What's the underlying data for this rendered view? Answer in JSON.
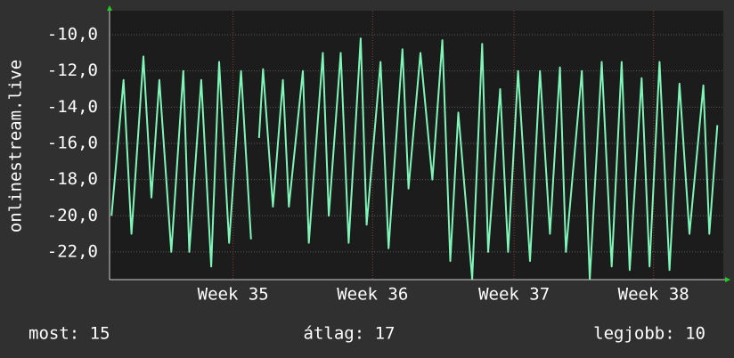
{
  "chart_data": {
    "type": "line",
    "y_label": "onlinestream.live",
    "x": [
      0.1,
      0.7,
      1.1,
      1.7,
      2.1,
      2.5,
      3.1,
      3.7,
      4.0,
      4.6,
      5.1,
      5.5,
      6.0,
      6.6,
      7.1,
      7.3,
      7.5,
      7.7,
      8.2,
      8.7,
      9.0,
      9.7,
      10.0,
      10.7,
      11.0,
      11.6,
      12.0,
      12.6,
      12.9,
      13.6,
      14.0,
      14.7,
      15.0,
      15.6,
      16.2,
      16.7,
      17.1,
      17.5,
      18.2,
      18.7,
      19.0,
      19.6,
      20.0,
      20.5,
      21.1,
      21.6,
      22.1,
      22.6,
      22.9,
      23.7,
      24.1,
      24.7,
      25.2,
      25.7,
      26.1,
      26.7,
      27.1,
      27.6,
      28.1,
      28.6,
      29.1,
      29.8,
      30.1,
      30.5
    ],
    "series": [
      {
        "name": "onlinestream.live",
        "color": "#7ff5b8",
        "values": [
          -20,
          -12.5,
          -21,
          -11.2,
          -19,
          -12.5,
          -22,
          -12,
          -22,
          -12.5,
          -22.8,
          -11.5,
          -21.5,
          -12,
          -21.3,
          null,
          -15.7,
          -11.9,
          -19.5,
          -12.5,
          -19.5,
          -12,
          -21.5,
          -11,
          -20,
          -11,
          -21.5,
          -10.2,
          -20.5,
          -11.5,
          -21.8,
          -10.8,
          -18.5,
          -11,
          -18,
          -10.3,
          -22.5,
          -14.3,
          -23.5,
          -10.5,
          -22,
          -13,
          -22,
          -12,
          -22.5,
          -12,
          -21,
          -11.8,
          -22,
          -12,
          -23.5,
          -11.5,
          -22.8,
          -11.5,
          -23,
          -12.4,
          -22.8,
          -11.5,
          -23,
          -12.7,
          -21,
          -12.8,
          -21,
          -15
        ]
      }
    ],
    "xlim": [
      0,
      30.8
    ],
    "xticks": [
      {
        "value": 6.2,
        "label": "Week 35"
      },
      {
        "value": 13.2,
        "label": "Week 36"
      },
      {
        "value": 20.3,
        "label": "Week 37"
      },
      {
        "value": 27.3,
        "label": "Week 38"
      }
    ],
    "ylim": [
      -23.53,
      -8.67
    ],
    "yticks": [
      {
        "value": -22,
        "label": "-22,0"
      },
      {
        "value": -20,
        "label": "-20,0"
      },
      {
        "value": -18,
        "label": "-18,0"
      },
      {
        "value": -16,
        "label": "-16,0"
      },
      {
        "value": -14,
        "label": "-14,0"
      },
      {
        "value": -12,
        "label": "-12,0"
      },
      {
        "value": -10,
        "label": "-10,0"
      }
    ],
    "grid": true,
    "stats": [
      "most: 15",
      "átlag: 17",
      "legjobb: 10"
    ]
  }
}
